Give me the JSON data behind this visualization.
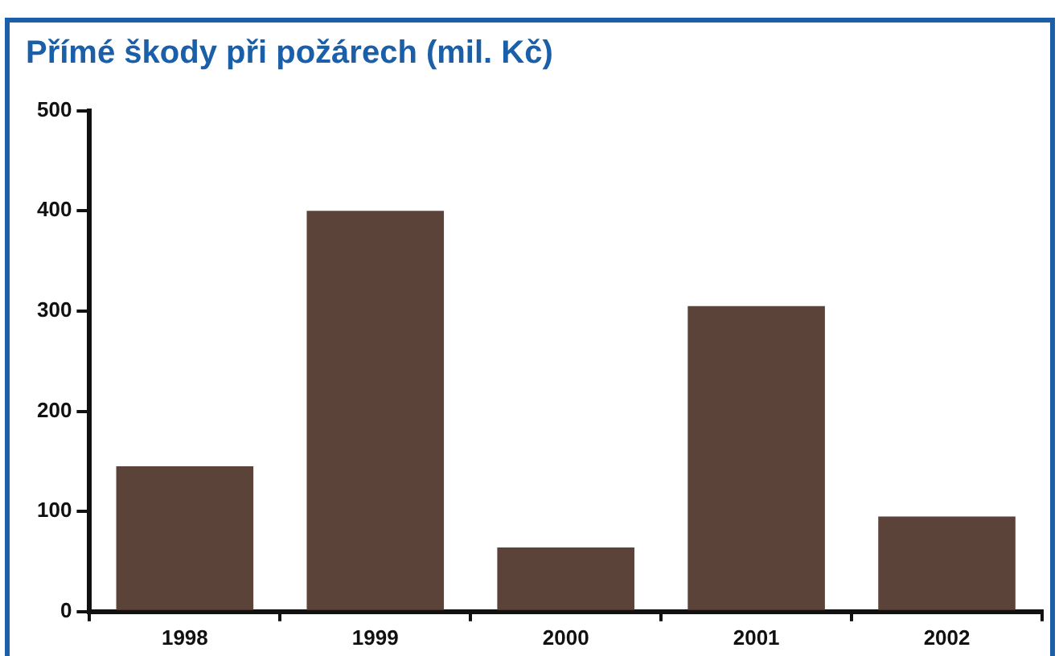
{
  "chart_data": {
    "type": "bar",
    "title": "Přímé škody při požárech (mil. Kč)",
    "categories": [
      "1998",
      "1999",
      "2000",
      "2001",
      "2002"
    ],
    "values": [
      145,
      400,
      64,
      305,
      95
    ],
    "color": "#5c4339",
    "ylim": [
      0,
      500
    ],
    "yticks": [
      0,
      100,
      200,
      300,
      400,
      500
    ],
    "grid": false,
    "legend": false
  }
}
